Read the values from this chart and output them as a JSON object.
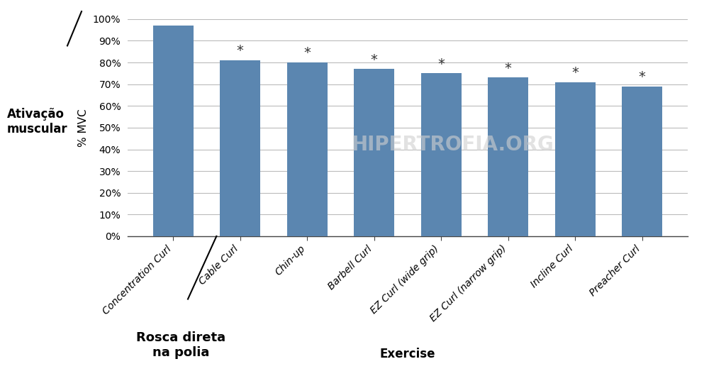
{
  "categories": [
    "Concentration Curl",
    "Cable Curl",
    "Chin-up",
    "Barbell Curl",
    "EZ Curl (wide grip)",
    "EZ Curl (narrow grip)",
    "Incline Curl",
    "Preacher Curl"
  ],
  "values": [
    97,
    81,
    80,
    77,
    75,
    73,
    71,
    69
  ],
  "bar_color": "#5b86b0",
  "ylabel": "% MVC",
  "xlabel": "Exercise",
  "ylim": [
    0,
    100
  ],
  "yticks": [
    0,
    10,
    20,
    30,
    40,
    50,
    60,
    70,
    80,
    90,
    100
  ],
  "ytick_labels": [
    "0%",
    "10%",
    "20%",
    "30%",
    "40%",
    "50%",
    "60%",
    "70%",
    "80%",
    "90%",
    "100%"
  ],
  "star_positions": [
    1,
    2,
    3,
    4,
    5,
    6,
    7
  ],
  "annotation_label": "Rosca direta\nna polia",
  "ylabel_side_label": "Ativação\nmuscular",
  "watermark": "HIPERTROFIA.ORG",
  "background_color": "#ffffff",
  "grid_color": "#bbbbbb",
  "axis_fontsize": 11,
  "tick_fontsize": 10
}
